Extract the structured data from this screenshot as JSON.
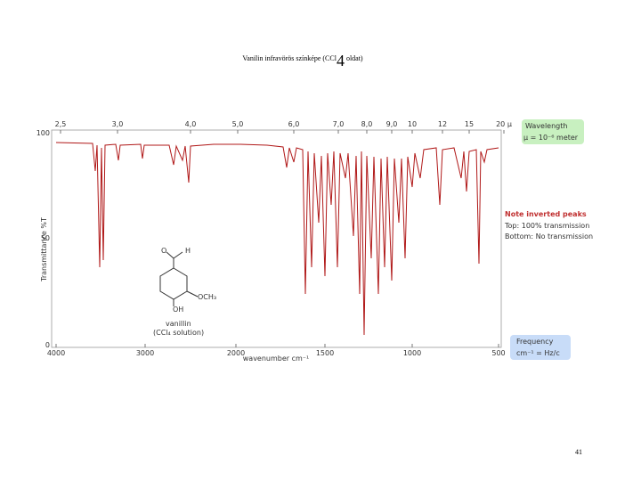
{
  "slide": {
    "title": {
      "main": "Vanilin infravörös színképe (CCl",
      "sub": "4",
      "rest": " oldat)"
    },
    "spectrum": {
      "wavelength_ticks": [
        "2,5",
        "3,0",
        "4,0",
        "5,0",
        "6,0",
        "7,0",
        "8,0",
        "9,0",
        "10",
        "12",
        "15",
        "20 µ"
      ],
      "frequency_ticks": [
        "4000",
        "3000",
        "2000",
        "1500",
        "1000",
        "500"
      ],
      "y_ticks": [
        "100",
        "50",
        "0"
      ],
      "x_label": "wavenumber cm⁻¹",
      "y_label": "Transmittance %T"
    },
    "wavelength_box": {
      "title": "Wavelength",
      "text": "µ = 10⁻⁶ meter"
    },
    "note": {
      "title": "Note inverted peaks",
      "top": "Top: 100% transmission",
      "bottom": "Bottom: No transmission"
    },
    "frequency_box": {
      "title": "Frequency",
      "text": "cm⁻¹ = Hz/c"
    },
    "molecule": {
      "o": "O",
      "h": "H",
      "och3": "OCH₃",
      "oh": "OH",
      "name": "vanillin",
      "solvent": "(CCl₄ solution)"
    },
    "page_number": "41"
  }
}
